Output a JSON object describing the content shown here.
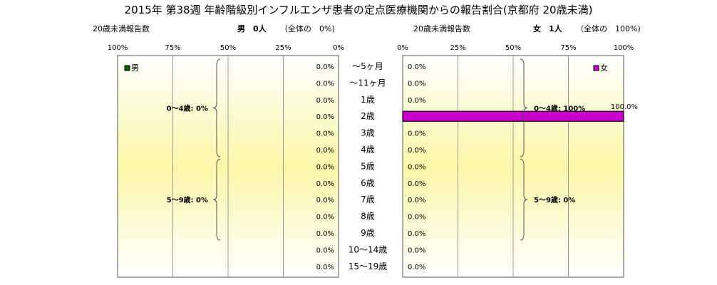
{
  "title": "2015年 第38週 年齢階級別インフルエンザ患者の定点医療機関からの報告割合(京都府 20歳未満)",
  "left_header": {
    "report_label": "20歳未満報告数",
    "count_label": "男　0人",
    "share_label": "（全体の　0%)"
  },
  "right_header": {
    "report_label": "20歳未満報告数",
    "count_label": "女　1人",
    "share_label": "（全体の　100%)"
  },
  "chart_data": [
    {
      "type": "bar",
      "orientation": "horizontal",
      "direction": "right-to-left",
      "categories": [
        "〜5ヶ月",
        "〜11ヶ月",
        "1歳",
        "2歳",
        "3歳",
        "4歳",
        "5歳",
        "6歳",
        "7歳",
        "8歳",
        "9歳",
        "10〜14歳",
        "15〜19歳"
      ],
      "series": [
        {
          "name": "男",
          "values": [
            0,
            0,
            0,
            0,
            0,
            0,
            0,
            0,
            0,
            0,
            0,
            0,
            0
          ],
          "color": "#006400"
        }
      ],
      "value_labels": [
        "0.0%",
        "0.0%",
        "0.0%",
        "0.0%",
        "0.0%",
        "0.0%",
        "0.0%",
        "0.0%",
        "0.0%",
        "0.0%",
        "0.0%",
        "0.0%",
        "0.0%"
      ],
      "xlim": [
        0,
        100
      ],
      "x_ticks": [
        "100%",
        "75%",
        "50%",
        "25%",
        "0%"
      ],
      "grid": true,
      "legend": "top-left",
      "groups": [
        {
          "label": "0〜4歳: 0%",
          "from": 0,
          "to": 5
        },
        {
          "label": "5〜9歳: 0%",
          "from": 6,
          "to": 10
        }
      ]
    },
    {
      "type": "bar",
      "orientation": "horizontal",
      "direction": "left-to-right",
      "categories": [
        "〜5ヶ月",
        "〜11ヶ月",
        "1歳",
        "2歳",
        "3歳",
        "4歳",
        "5歳",
        "6歳",
        "7歳",
        "8歳",
        "9歳",
        "10〜14歳",
        "15〜19歳"
      ],
      "series": [
        {
          "name": "女",
          "values": [
            0,
            0,
            0,
            100,
            0,
            0,
            0,
            0,
            0,
            0,
            0,
            0,
            0
          ],
          "color": "#cc00cc"
        }
      ],
      "value_labels": [
        "0.0%",
        "0.0%",
        "0.0%",
        "100.0%",
        "0.0%",
        "0.0%",
        "0.0%",
        "0.0%",
        "0.0%",
        "0.0%",
        "0.0%",
        "0.0%",
        "0.0%"
      ],
      "xlim": [
        0,
        100
      ],
      "x_ticks": [
        "0%",
        "25%",
        "50%",
        "75%",
        "100%"
      ],
      "grid": true,
      "legend": "top-right",
      "groups": [
        {
          "label": "0〜4歳: 100%",
          "from": 0,
          "to": 5
        },
        {
          "label": "5〜9歳: 0%",
          "from": 6,
          "to": 10
        }
      ]
    }
  ]
}
